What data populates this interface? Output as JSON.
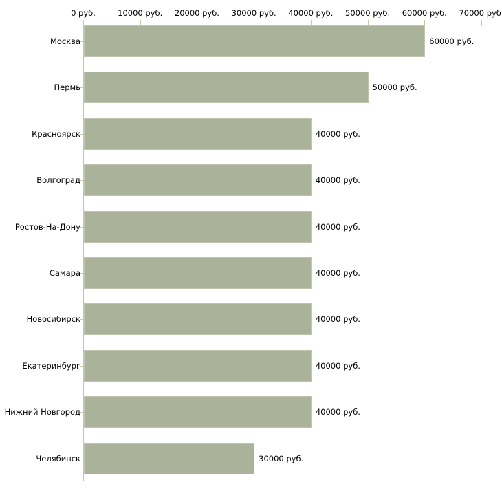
{
  "chart_data": {
    "type": "bar",
    "orientation": "horizontal",
    "title": "",
    "xlabel": "",
    "ylabel": "",
    "unit": "руб.",
    "categories": [
      "Москва",
      "Пермь",
      "Красноярск",
      "Волгоград",
      "Ростов-На-Дону",
      "Самара",
      "Новосибирск",
      "Екатеринбург",
      "Нижний Новгород",
      "Челябинск"
    ],
    "values": [
      60000,
      50000,
      40000,
      40000,
      40000,
      40000,
      40000,
      40000,
      40000,
      30000
    ],
    "value_labels": [
      "60000 руб.",
      "50000 руб.",
      "40000 руб.",
      "40000 руб.",
      "40000 руб.",
      "40000 руб.",
      "40000 руб.",
      "40000 руб.",
      "40000 руб.",
      "30000 руб."
    ],
    "x_ticks": [
      0,
      10000,
      20000,
      30000,
      40000,
      50000,
      60000,
      70000
    ],
    "x_tick_labels": [
      "0 руб.",
      "10000 руб.",
      "20000 руб.",
      "30000 руб.",
      "40000 руб.",
      "50000 руб.",
      "60000 руб.",
      "70000 руб."
    ],
    "xlim": [
      0,
      70000
    ],
    "grid": false,
    "legend": false,
    "bar_color": "#abb29a",
    "bar_border_color": "#bfc5ae",
    "axis_color": "#c1c1c1",
    "tick_color": "#c9c9a3",
    "text_color": "#000000",
    "background_color": "#ffffff"
  }
}
